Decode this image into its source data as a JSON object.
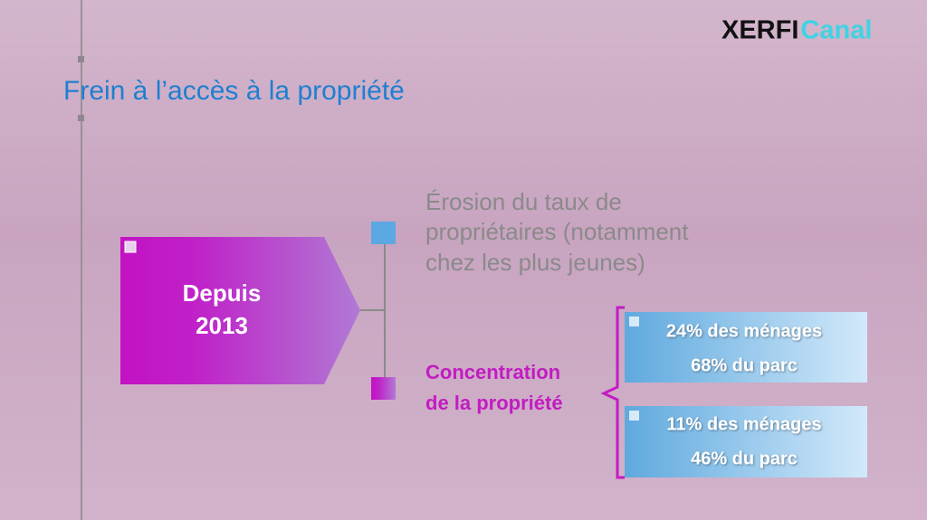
{
  "logo": {
    "part1": "XERFI",
    "part2": "Canal"
  },
  "title": "Frein à l’accès à la propriété",
  "arrow": {
    "lines": [
      "Depuis",
      "2013"
    ]
  },
  "items": [
    {
      "lines": [
        "Érosion du taux de",
        "propriétaires (notamment",
        "chez les plus jeunes)"
      ]
    },
    {
      "lines": [
        "Concentration",
        "de la propriété"
      ]
    }
  ],
  "boxes": [
    {
      "lines": [
        "24% des ménages",
        "68% du parc"
      ]
    },
    {
      "lines": [
        "11% des ménages",
        "46% du parc"
      ]
    }
  ]
}
